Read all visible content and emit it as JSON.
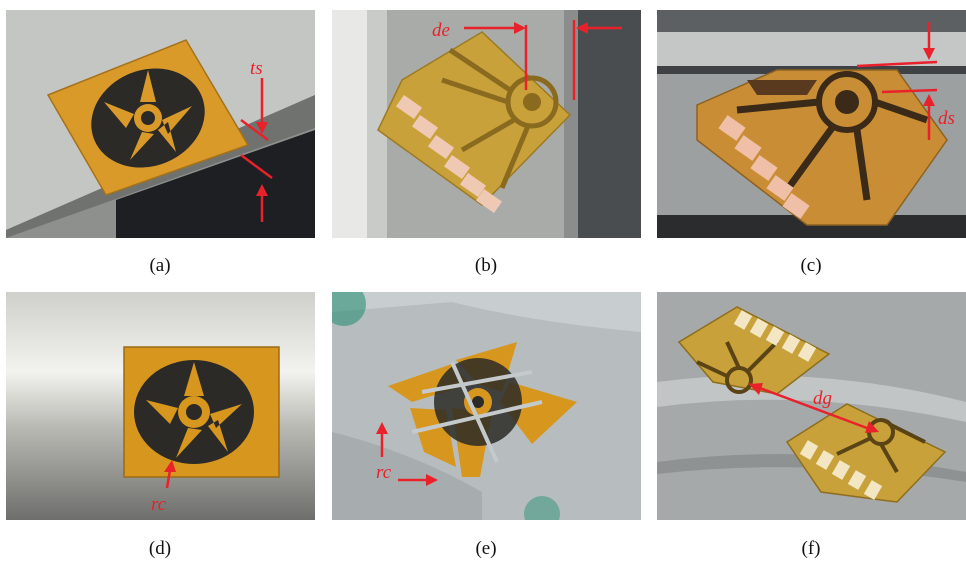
{
  "figure": {
    "panels": [
      {
        "id": "a",
        "caption": "(a)",
        "annotations": [
          "ts"
        ]
      },
      {
        "id": "b",
        "caption": "(b)",
        "annotations": [
          "de"
        ]
      },
      {
        "id": "c",
        "caption": "(c)",
        "annotations": [
          "ds"
        ]
      },
      {
        "id": "d",
        "caption": "(d)",
        "annotations": [
          "rc"
        ]
      },
      {
        "id": "e",
        "caption": "(e)",
        "annotations": [
          "rc"
        ]
      },
      {
        "id": "f",
        "caption": "(f)",
        "annotations": [
          "dg"
        ]
      }
    ],
    "colors": {
      "annotation": "#e8212b",
      "sensor_film": "#d99a2a",
      "metal": "#b8b9b6",
      "trace": "#2b2a26"
    }
  }
}
